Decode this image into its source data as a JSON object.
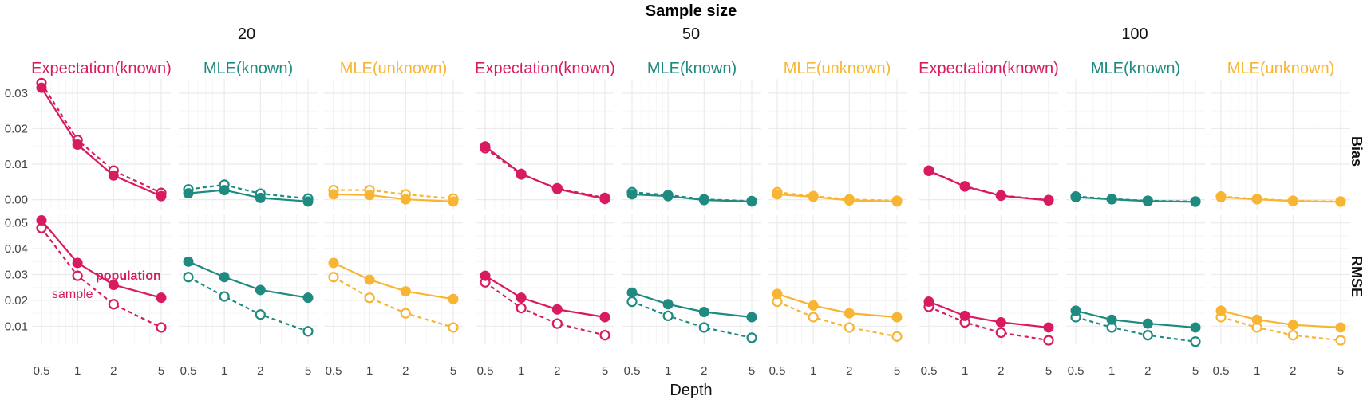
{
  "figure": {
    "top_title": "Sample size",
    "x_axis_title": "Depth",
    "sample_sizes": [
      "20",
      "50",
      "100"
    ],
    "methods": [
      {
        "label": "Expectation(known)",
        "color": "#d81b60"
      },
      {
        "label": "MLE(known)",
        "color": "#1e8a80"
      },
      {
        "label": "MLE(unknown)",
        "color": "#f8b533"
      }
    ],
    "rows": [
      "Bias",
      "RMSE"
    ],
    "annotations": {
      "population": "population",
      "sample": "sample"
    }
  },
  "chart_data": {
    "type": "line",
    "x": [
      0.5,
      1,
      2,
      5
    ],
    "x_ticks": [
      "0.5",
      "1",
      "2",
      "5"
    ],
    "x_scale": "log",
    "xlim": [
      0.42,
      5.6
    ],
    "grid": true,
    "axes": {
      "Bias": {
        "ylim": [
          -0.003,
          0.034
        ],
        "ticks": [
          "0.00",
          "0.01",
          "0.02",
          "0.03"
        ],
        "tick_values": [
          0,
          0.01,
          0.02,
          0.03
        ]
      },
      "RMSE": {
        "ylim": [
          0.003,
          0.053
        ],
        "ticks": [
          "0.01",
          "0.02",
          "0.03",
          "0.04",
          "0.05"
        ],
        "tick_values": [
          0.01,
          0.02,
          0.03,
          0.04,
          0.05
        ]
      }
    },
    "line_styles": {
      "population": "solid, filled points",
      "sample": "dashed, open points"
    },
    "panels": [
      {
        "sample_size": "20",
        "method": "Expectation(known)",
        "row": "Bias",
        "population": [
          0.0315,
          0.0155,
          0.0068,
          0.001
        ],
        "sample": [
          0.0328,
          0.0168,
          0.0082,
          0.0019
        ]
      },
      {
        "sample_size": "20",
        "method": "MLE(known)",
        "row": "Bias",
        "population": [
          0.0018,
          0.0027,
          0.0005,
          -0.0005
        ],
        "sample": [
          0.0029,
          0.0042,
          0.0017,
          0.0003
        ]
      },
      {
        "sample_size": "20",
        "method": "MLE(unknown)",
        "row": "Bias",
        "population": [
          0.0015,
          0.0013,
          0.0001,
          -0.0005
        ],
        "sample": [
          0.0027,
          0.0027,
          0.0015,
          0.0003
        ]
      },
      {
        "sample_size": "50",
        "method": "Expectation(known)",
        "row": "Bias",
        "population": [
          0.015,
          0.0073,
          0.003,
          0.0002
        ],
        "sample": [
          0.0145,
          0.0071,
          0.0032,
          0.0005
        ]
      },
      {
        "sample_size": "50",
        "method": "MLE(known)",
        "row": "Bias",
        "population": [
          0.0015,
          0.001,
          -0.0001,
          -0.0005
        ],
        "sample": [
          0.0021,
          0.0013,
          0.0001,
          -0.0004
        ]
      },
      {
        "sample_size": "50",
        "method": "MLE(unknown)",
        "row": "Bias",
        "population": [
          0.0015,
          0.0008,
          -0.0002,
          -0.0005
        ],
        "sample": [
          0.0021,
          0.001,
          0.0001,
          -0.0003
        ]
      },
      {
        "sample_size": "100",
        "method": "Expectation(known)",
        "row": "Bias",
        "population": [
          0.0081,
          0.0037,
          0.0011,
          -0.0002
        ],
        "sample": [
          0.0082,
          0.0038,
          0.0012,
          -0.0001
        ]
      },
      {
        "sample_size": "100",
        "method": "MLE(known)",
        "row": "Bias",
        "population": [
          0.0007,
          0.0001,
          -0.0004,
          -0.0006
        ],
        "sample": [
          0.0009,
          0.0002,
          -0.0003,
          -0.0005
        ]
      },
      {
        "sample_size": "100",
        "method": "MLE(unknown)",
        "row": "Bias",
        "population": [
          0.0007,
          0.0001,
          -0.0004,
          -0.0006
        ],
        "sample": [
          0.0009,
          0.0002,
          -0.0003,
          -0.0005
        ]
      },
      {
        "sample_size": "20",
        "method": "Expectation(known)",
        "row": "RMSE",
        "population": [
          0.051,
          0.0345,
          0.026,
          0.021
        ],
        "sample": [
          0.048,
          0.0295,
          0.0185,
          0.0095
        ]
      },
      {
        "sample_size": "20",
        "method": "MLE(known)",
        "row": "RMSE",
        "population": [
          0.035,
          0.029,
          0.024,
          0.021
        ],
        "sample": [
          0.029,
          0.0215,
          0.0145,
          0.008
        ]
      },
      {
        "sample_size": "20",
        "method": "MLE(unknown)",
        "row": "RMSE",
        "population": [
          0.0345,
          0.028,
          0.0235,
          0.0205
        ],
        "sample": [
          0.029,
          0.021,
          0.015,
          0.0095
        ]
      },
      {
        "sample_size": "50",
        "method": "Expectation(known)",
        "row": "RMSE",
        "population": [
          0.0295,
          0.021,
          0.0165,
          0.0135
        ],
        "sample": [
          0.027,
          0.017,
          0.011,
          0.0065
        ]
      },
      {
        "sample_size": "50",
        "method": "MLE(known)",
        "row": "RMSE",
        "population": [
          0.023,
          0.0185,
          0.0155,
          0.0135
        ],
        "sample": [
          0.0195,
          0.014,
          0.0095,
          0.0055
        ]
      },
      {
        "sample_size": "50",
        "method": "MLE(unknown)",
        "row": "RMSE",
        "population": [
          0.0225,
          0.018,
          0.015,
          0.0135
        ],
        "sample": [
          0.0195,
          0.0135,
          0.0095,
          0.006
        ]
      },
      {
        "sample_size": "100",
        "method": "Expectation(known)",
        "row": "RMSE",
        "population": [
          0.0195,
          0.014,
          0.0115,
          0.0095
        ],
        "sample": [
          0.0175,
          0.0115,
          0.0075,
          0.0045
        ]
      },
      {
        "sample_size": "100",
        "method": "MLE(known)",
        "row": "RMSE",
        "population": [
          0.016,
          0.0125,
          0.011,
          0.0095
        ],
        "sample": [
          0.0135,
          0.0095,
          0.0065,
          0.004
        ]
      },
      {
        "sample_size": "100",
        "method": "MLE(unknown)",
        "row": "RMSE",
        "population": [
          0.016,
          0.0125,
          0.0105,
          0.0095
        ],
        "sample": [
          0.0135,
          0.0095,
          0.0065,
          0.0045
        ]
      }
    ]
  }
}
